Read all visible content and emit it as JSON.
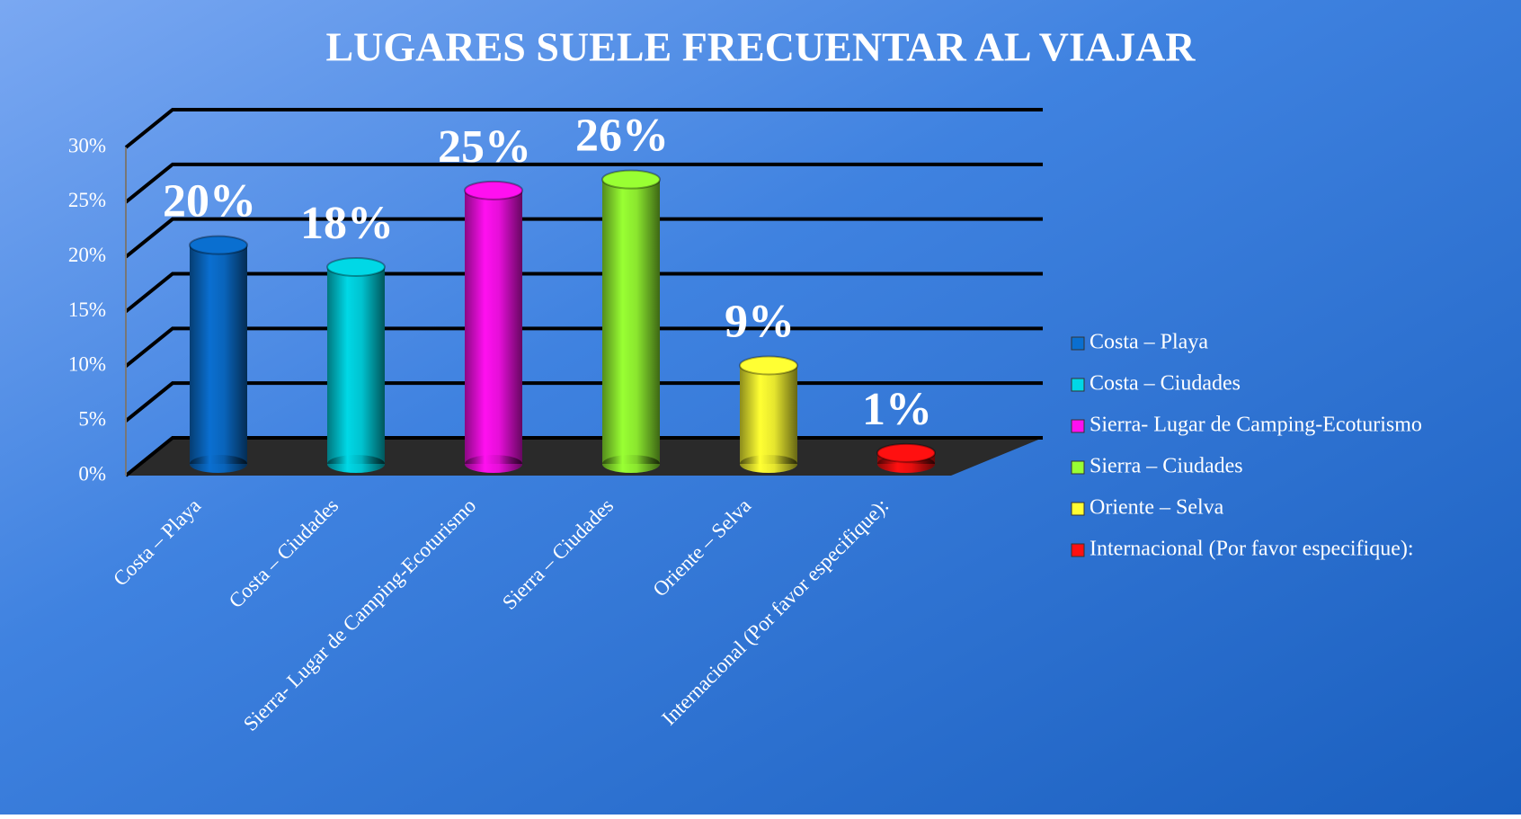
{
  "chart_data": {
    "type": "bar3d",
    "title": "LUGARES SUELE FRECUENTAR AL VIAJAR",
    "categories": [
      "Costa – Playa",
      "Costa – Ciudades",
      "Sierra- Lugar de Camping-Ecoturismo",
      "Sierra – Ciudades",
      "Oriente – Selva",
      "Internacional (Por favor especifique):"
    ],
    "values": [
      20,
      18,
      25,
      26,
      9,
      1
    ],
    "value_labels": [
      "20%",
      "18%",
      "25%",
      "26%",
      "9%",
      "1%"
    ],
    "colors": [
      "#0a6fd0",
      "#00d8e6",
      "#ff10f0",
      "#99ff33",
      "#ffff33",
      "#ff1010"
    ],
    "ylim": [
      0,
      30
    ],
    "yticks": [
      {
        "value": 0,
        "label": "0%"
      },
      {
        "value": 5,
        "label": "5%"
      },
      {
        "value": 10,
        "label": "10%"
      },
      {
        "value": 15,
        "label": "15%"
      },
      {
        "value": 20,
        "label": "20%"
      },
      {
        "value": 25,
        "label": "25%"
      },
      {
        "value": 30,
        "label": "30%"
      }
    ],
    "grid": true,
    "legend": "right"
  }
}
